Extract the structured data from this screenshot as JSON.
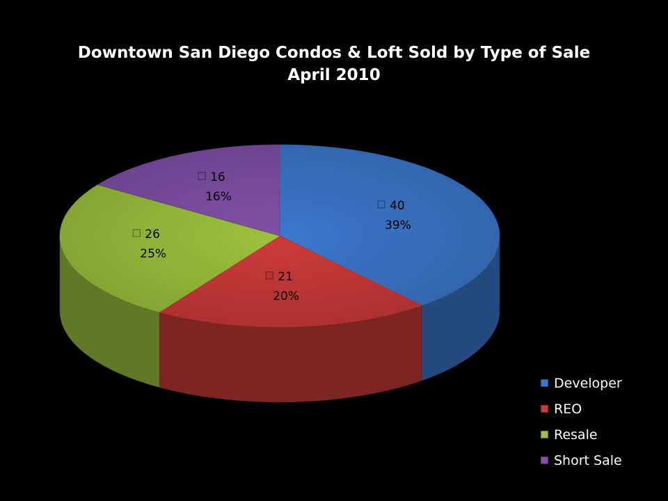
{
  "chart_data": {
    "type": "pie",
    "title": "Downtown San Diego Condos & Loft Sold by Type of Sale",
    "subtitle": "April 2010",
    "legend_position": "bottom-right",
    "three_d": true,
    "slices": [
      {
        "name": "Developer",
        "value": 40,
        "percent": "39%",
        "value_label": "40",
        "color": "#3c78cc"
      },
      {
        "name": "REO",
        "value": 21,
        "percent": "20%",
        "value_label": "21",
        "color": "#cc3b3a"
      },
      {
        "name": "Resale",
        "value": 26,
        "percent": "25%",
        "value_label": "26",
        "color": "#9cc33d"
      },
      {
        "name": "Short Sale",
        "value": 16,
        "percent": "16%",
        "value_label": "16",
        "color": "#8150a8"
      }
    ]
  }
}
